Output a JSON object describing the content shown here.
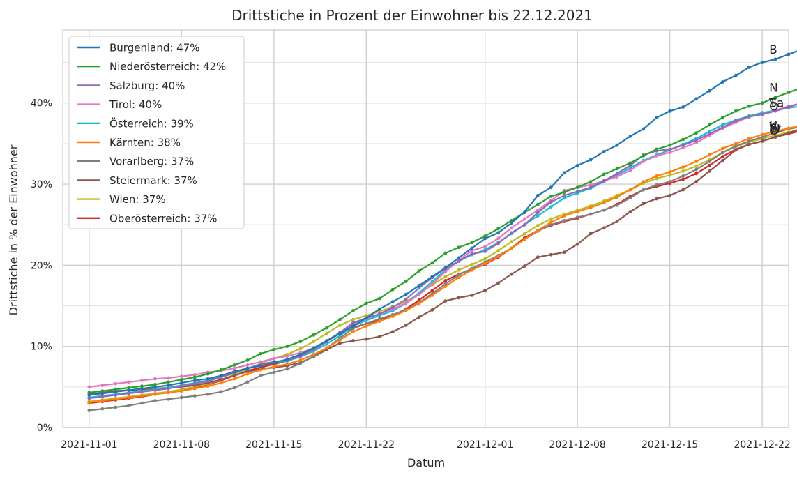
{
  "chart_data": {
    "type": "line",
    "title": "Drittstiche in Prozent der Einwohner bis 22.12.2021",
    "xlabel": "Datum",
    "ylabel": "Drittstiche in % der Einwohner",
    "x_start": "2021-11-01",
    "x_end": "2021-12-22",
    "xlim": [
      "2021-10-30",
      "2021-12-24"
    ],
    "ylim": [
      0,
      49
    ],
    "x_ticks": [
      {
        "date": "2021-11-01",
        "label": "2021-11-01"
      },
      {
        "date": "2021-11-08",
        "label": "2021-11-08"
      },
      {
        "date": "2021-11-15",
        "label": "2021-11-15"
      },
      {
        "date": "2021-11-22",
        "label": "2021-11-22"
      },
      {
        "date": "2021-12-01",
        "label": "2021-12-01"
      },
      {
        "date": "2021-12-08",
        "label": "2021-12-08"
      },
      {
        "date": "2021-12-15",
        "label": "2021-12-15"
      },
      {
        "date": "2021-12-22",
        "label": "2021-12-22"
      }
    ],
    "y_ticks": [
      {
        "value": 0,
        "label": "0%"
      },
      {
        "value": 10,
        "label": "10%"
      },
      {
        "value": 20,
        "label": "20%"
      },
      {
        "value": 30,
        "label": "30%"
      },
      {
        "value": 40,
        "label": "40%"
      }
    ],
    "y_minor_ticks": [
      5,
      15,
      25,
      35,
      45
    ],
    "grid": true,
    "legend_position": "top-left",
    "series": [
      {
        "name": "Burgenland",
        "legend": "Burgenland: 47%",
        "end_label": "B",
        "color": "#1f77b4",
        "values": [
          4.0,
          4.2,
          4.4,
          4.6,
          4.8,
          5.0,
          5.2,
          5.5,
          5.8,
          6.0,
          6.4,
          6.9,
          7.3,
          7.6,
          8.0,
          8.4,
          9.0,
          9.8,
          10.7,
          11.6,
          12.5,
          13.5,
          14.6,
          15.5,
          16.4,
          17.5,
          18.6,
          19.7,
          20.9,
          22.1,
          23.3,
          24.0,
          25.2,
          26.6,
          28.6,
          29.6,
          31.4,
          32.3,
          33.0,
          34.0,
          34.8,
          35.9,
          36.8,
          38.2,
          39.0,
          39.5,
          40.5,
          41.5,
          42.6,
          43.4,
          44.4,
          45.0,
          45.4,
          46.0,
          46.6
        ]
      },
      {
        "name": "Niederösterreich",
        "legend": "Niederösterreich: 42%",
        "end_label": "N",
        "color": "#2ca02c",
        "values": [
          4.3,
          4.5,
          4.7,
          4.9,
          5.1,
          5.3,
          5.6,
          5.9,
          6.2,
          6.6,
          7.1,
          7.7,
          8.3,
          9.1,
          9.6,
          10.0,
          10.6,
          11.4,
          12.3,
          13.3,
          14.4,
          15.3,
          15.9,
          17.0,
          18.0,
          19.3,
          20.3,
          21.5,
          22.2,
          22.8,
          23.6,
          24.5,
          25.5,
          26.5,
          27.5,
          28.5,
          29.0,
          29.6,
          30.3,
          31.2,
          31.9,
          32.6,
          33.5,
          34.3,
          34.8,
          35.5,
          36.3,
          37.3,
          38.2,
          39.0,
          39.6,
          40.0,
          40.7,
          41.3,
          41.9
        ]
      },
      {
        "name": "Salzburg",
        "legend": "Salzburg: 40%",
        "end_label": "Sa",
        "color": "#9467bd",
        "values": [
          3.6,
          3.8,
          4.0,
          4.2,
          4.4,
          4.6,
          4.8,
          5.1,
          5.4,
          5.7,
          6.2,
          6.7,
          7.3,
          7.8,
          8.1,
          8.3,
          8.8,
          9.6,
          10.6,
          11.7,
          12.9,
          13.5,
          14.0,
          14.8,
          15.8,
          17.2,
          18.5,
          19.6,
          20.5,
          21.4,
          21.7,
          22.7,
          24.0,
          25.0,
          26.5,
          27.8,
          28.6,
          29.1,
          29.6,
          30.4,
          31.3,
          32.3,
          33.6,
          34.1,
          34.3,
          34.8,
          35.4,
          36.2,
          37.0,
          37.8,
          38.3,
          38.6,
          39.0,
          39.5,
          40.0
        ]
      },
      {
        "name": "Tirol",
        "legend": "Tirol: 40%",
        "end_label": "T",
        "color": "#e377c2",
        "values": [
          5.0,
          5.2,
          5.4,
          5.6,
          5.8,
          6.0,
          6.1,
          6.3,
          6.5,
          6.8,
          7.0,
          7.3,
          7.7,
          8.1,
          8.5,
          8.8,
          9.2,
          9.8,
          10.7,
          11.7,
          12.7,
          13.4,
          14.0,
          14.6,
          15.3,
          16.4,
          17.7,
          19.2,
          20.6,
          21.8,
          22.3,
          23.3,
          24.6,
          25.7,
          26.8,
          28.0,
          29.2,
          29.6,
          29.9,
          30.4,
          30.9,
          31.7,
          32.8,
          33.5,
          33.9,
          34.5,
          35.1,
          36.0,
          36.9,
          37.6,
          38.3,
          38.6,
          39.1,
          39.6,
          40.0
        ]
      },
      {
        "name": "Österreich",
        "legend": "Österreich: 39%",
        "end_label": "Ö",
        "color": "#17becf",
        "values": [
          3.7,
          3.9,
          4.1,
          4.3,
          4.5,
          4.7,
          4.9,
          5.2,
          5.5,
          5.8,
          6.3,
          6.8,
          7.3,
          7.7,
          8.0,
          8.2,
          8.7,
          9.4,
          10.3,
          11.3,
          12.5,
          13.2,
          13.8,
          14.4,
          15.3,
          16.6,
          18.0,
          19.4,
          20.5,
          21.3,
          21.9,
          22.8,
          23.9,
          25.0,
          26.1,
          27.2,
          28.3,
          28.9,
          29.5,
          30.3,
          31.1,
          32.0,
          32.9,
          33.6,
          34.2,
          34.9,
          35.6,
          36.5,
          37.3,
          37.9,
          38.4,
          38.8,
          39.1,
          39.4,
          39.6
        ]
      },
      {
        "name": "Kärnten",
        "legend": "Kärnten: 38%",
        "end_label": "K",
        "color": "#ff7f0e",
        "values": [
          3.1,
          3.3,
          3.5,
          3.7,
          3.9,
          4.1,
          4.3,
          4.5,
          4.8,
          5.1,
          5.5,
          6.0,
          6.6,
          7.1,
          7.5,
          7.8,
          8.3,
          9.0,
          9.8,
          10.8,
          11.8,
          12.5,
          13.1,
          13.7,
          14.4,
          15.3,
          16.3,
          17.4,
          18.5,
          19.4,
          20.2,
          21.1,
          22.1,
          23.2,
          24.3,
          25.3,
          26.1,
          26.6,
          27.1,
          27.7,
          28.4,
          29.3,
          30.3,
          31.0,
          31.5,
          32.1,
          32.8,
          33.6,
          34.4,
          35.0,
          35.6,
          36.1,
          36.5,
          36.9,
          37.2
        ]
      },
      {
        "name": "Vorarlberg",
        "legend": "Vorarlberg: 37%",
        "end_label": "V",
        "color": "#7f7f7f",
        "values": [
          2.1,
          2.3,
          2.5,
          2.7,
          3.0,
          3.3,
          3.5,
          3.7,
          3.9,
          4.1,
          4.4,
          4.9,
          5.6,
          6.4,
          6.8,
          7.2,
          7.9,
          8.8,
          9.8,
          11.0,
          12.2,
          12.8,
          13.4,
          13.9,
          14.5,
          15.4,
          16.5,
          17.7,
          18.8,
          19.6,
          20.4,
          21.2,
          22.1,
          23.2,
          24.2,
          25.0,
          25.5,
          25.9,
          26.3,
          26.8,
          27.4,
          28.3,
          29.3,
          29.9,
          30.3,
          31.0,
          31.8,
          32.8,
          33.9,
          34.7,
          35.3,
          35.8,
          36.3,
          36.8,
          37.1
        ]
      },
      {
        "name": "Steiermark",
        "legend": "Steiermark: 37%",
        "end_label": "St",
        "color": "#8c564b",
        "values": [
          4.1,
          4.3,
          4.5,
          4.6,
          4.7,
          4.8,
          4.9,
          5.0,
          5.2,
          5.5,
          5.9,
          6.4,
          6.9,
          7.2,
          7.4,
          7.6,
          8.0,
          8.7,
          9.6,
          10.4,
          10.7,
          10.9,
          11.2,
          11.8,
          12.6,
          13.6,
          14.5,
          15.6,
          16.0,
          16.3,
          16.9,
          17.8,
          18.9,
          19.9,
          21.0,
          21.3,
          21.6,
          22.6,
          23.9,
          24.6,
          25.4,
          26.6,
          27.6,
          28.2,
          28.6,
          29.3,
          30.3,
          31.6,
          32.9,
          34.2,
          34.9,
          35.3,
          35.8,
          36.3,
          36.9
        ]
      },
      {
        "name": "Wien",
        "legend": "Wien: 37%",
        "end_label": "W",
        "color": "#bcbd22",
        "values": [
          3.2,
          3.4,
          3.6,
          3.8,
          4.0,
          4.2,
          4.4,
          4.7,
          5.0,
          5.4,
          5.9,
          6.5,
          7.2,
          7.9,
          8.5,
          9.0,
          9.7,
          10.6,
          11.6,
          12.6,
          13.3,
          13.8,
          14.3,
          14.9,
          15.5,
          16.5,
          17.6,
          18.6,
          19.4,
          20.1,
          20.8,
          21.8,
          22.9,
          23.9,
          24.9,
          25.7,
          26.3,
          26.8,
          27.3,
          27.9,
          28.6,
          29.3,
          30.1,
          30.7,
          31.1,
          31.6,
          32.2,
          33.0,
          33.9,
          34.6,
          35.2,
          35.6,
          36.0,
          36.4,
          36.8
        ]
      },
      {
        "name": "Oberösterreich",
        "legend": "Oberösterreich: 37%",
        "end_label": "O",
        "color": "#d62728",
        "values": [
          3.0,
          3.2,
          3.4,
          3.6,
          3.8,
          4.1,
          4.4,
          4.6,
          4.9,
          5.3,
          5.8,
          6.4,
          7.0,
          7.4,
          7.8,
          8.2,
          8.8,
          9.6,
          10.6,
          11.6,
          12.3,
          12.8,
          13.2,
          13.8,
          14.6,
          15.7,
          16.9,
          18.1,
          18.9,
          19.5,
          20.1,
          21.0,
          22.1,
          23.4,
          24.3,
          24.9,
          25.4,
          25.8,
          26.3,
          26.8,
          27.5,
          28.5,
          29.3,
          29.7,
          30.1,
          30.6,
          31.3,
          32.3,
          33.4,
          34.3,
          34.9,
          35.3,
          35.8,
          36.2,
          36.6
        ]
      }
    ]
  }
}
